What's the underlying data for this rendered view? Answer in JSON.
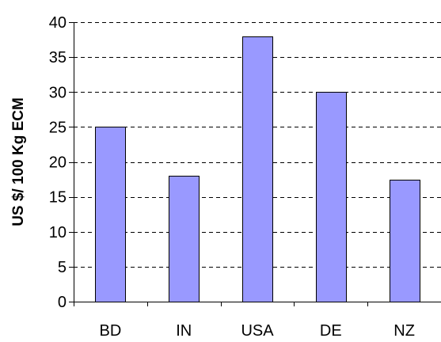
{
  "chart_data": {
    "type": "bar",
    "title": "",
    "xlabel": "",
    "ylabel": "US $/ 100 Kg ECM",
    "categories": [
      "BD",
      "IN",
      "USA",
      "DE",
      "NZ"
    ],
    "values": [
      25,
      18,
      38,
      30,
      17.5
    ],
    "ylim": [
      0,
      40
    ],
    "y_ticks": [
      "0",
      "5",
      "10",
      "15",
      "20",
      "25",
      "30",
      "35",
      "40"
    ],
    "grid": true,
    "grid_style": "dashed",
    "legend": "none",
    "bar_color": "#9999ff"
  }
}
